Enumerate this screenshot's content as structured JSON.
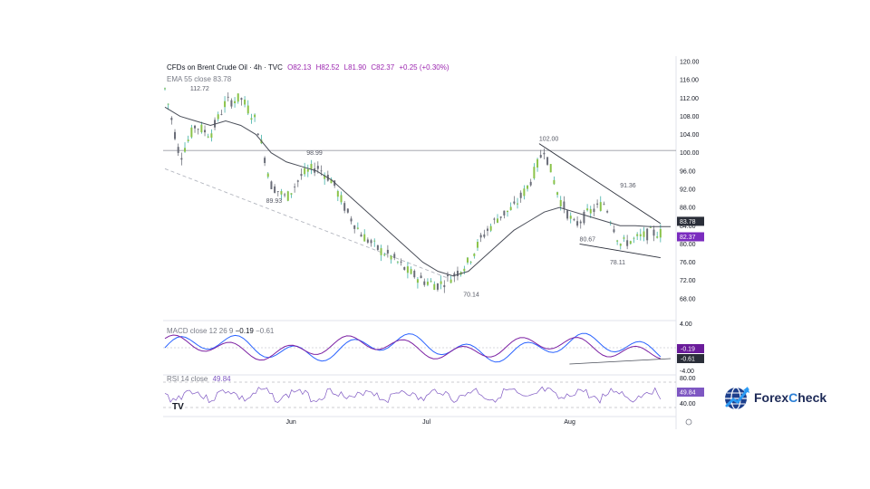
{
  "header": {
    "symbol": "CFDs on Brent Crude Oil · 4h · TVC",
    "ohlc": {
      "o": "O82.13",
      "h": "H82.52",
      "l": "L81.90",
      "c": "C82.37",
      "chg": "+0.25 (+0.30%)"
    },
    "ema_label": "EMA 55 close",
    "ema_value": "83.78",
    "macd_label": "MACD close 12 26 9",
    "macd_v1": "−0.19",
    "macd_v2": "−0.61",
    "rsi_label": "RSI 14 close",
    "rsi_value": "49.84"
  },
  "price_axis": {
    "min": 64,
    "max": 120,
    "ticks": [
      "120.00",
      "116.00",
      "112.00",
      "108.00",
      "104.00",
      "100.00",
      "96.00",
      "92.00",
      "88.00",
      "84.00",
      "80.00",
      "76.00",
      "72.00",
      "68.00"
    ],
    "tick_values": [
      120,
      116,
      112,
      108,
      104,
      100,
      96,
      92,
      88,
      84,
      80,
      76,
      72,
      68
    ],
    "badge_ema": "83.78",
    "badge_close": "82.37"
  },
  "macd_axis": {
    "top": "4.00",
    "bottom": "-4.00",
    "badge1": "-0.19",
    "badge2": "-0.61"
  },
  "rsi_axis": {
    "top": "80.00",
    "mid": "40.00",
    "badge": "49.84"
  },
  "time_axis": [
    "Jun",
    "Jul",
    "Aug"
  ],
  "annotations": [
    {
      "text": "112.72",
      "x": 5,
      "price": 113.6
    },
    {
      "text": "98.99",
      "x": 28,
      "price": 99.5
    },
    {
      "text": "89.93",
      "x": 20,
      "price": 89.0
    },
    {
      "text": "102.00",
      "x": 74,
      "price": 102.6
    },
    {
      "text": "91.36",
      "x": 90,
      "price": 92.4
    },
    {
      "text": "80.67",
      "x": 82,
      "price": 80.6
    },
    {
      "text": "78.11",
      "x": 88,
      "price": 75.5
    },
    {
      "text": "70.14",
      "x": 59,
      "price": 68.5
    }
  ],
  "chart_data": {
    "type": "line",
    "title": "CFDs on Brent Crude Oil · 4h · TVC",
    "x": [
      0,
      3,
      6,
      9,
      12,
      15,
      18,
      21,
      24,
      27,
      30,
      33,
      36,
      39,
      42,
      45,
      48,
      51,
      54,
      57,
      60,
      63,
      66,
      69,
      72,
      75,
      78,
      81,
      84,
      87,
      90,
      93,
      96,
      100
    ],
    "series": [
      {
        "name": "Price",
        "values": [
          114,
          99,
          106,
          104,
          111,
          112,
          107,
          93,
          90,
          95,
          97,
          94,
          87,
          82,
          79,
          77,
          74,
          72,
          71,
          73,
          76,
          82,
          86,
          88,
          93,
          101,
          90,
          84,
          87,
          89,
          80,
          81,
          82.4,
          82.4
        ]
      },
      {
        "name": "EMA 55 close",
        "values": [
          110,
          108,
          107,
          106,
          107,
          106,
          104,
          100,
          98,
          97,
          96,
          94,
          91,
          88,
          85,
          82,
          79,
          76,
          74,
          73,
          74,
          77,
          80,
          83,
          85,
          87,
          88,
          87,
          86,
          85,
          84,
          84,
          83.8,
          83.8
        ]
      }
    ],
    "ylim": [
      64,
      120
    ],
    "lines": {
      "horizontal_resistance": 100.5,
      "descending_trend": {
        "from": [
          0,
          96.5
        ],
        "to": [
          56,
          72.5
        ]
      },
      "upper_wedge": {
        "from": [
          74,
          102
        ],
        "to": [
          98,
          84.5
        ]
      },
      "lower_wedge": {
        "from": [
          82,
          80
        ],
        "to": [
          98,
          77
        ]
      }
    }
  }
}
